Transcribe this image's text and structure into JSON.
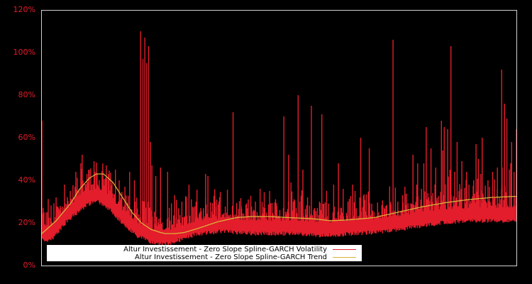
{
  "chart_data": {
    "type": "line",
    "title": "",
    "xlabel": "",
    "ylabel": "",
    "ylim": [
      0,
      120
    ],
    "y_ticks": [
      "0%",
      "20%",
      "40%",
      "60%",
      "80%",
      "100%",
      "120%"
    ],
    "y_tick_values": [
      0,
      20,
      40,
      60,
      80,
      100,
      120
    ],
    "grid": false,
    "legend_position": "lower left",
    "x_range_normalized": [
      0,
      1
    ],
    "series": [
      {
        "name": "Altur Investissement - Zero Slope Spline-GARCH Volatility",
        "color": "#e31d2b",
        "baseline": [
          [
            0.0,
            14
          ],
          [
            0.02,
            14
          ],
          [
            0.05,
            22
          ],
          [
            0.08,
            28
          ],
          [
            0.1,
            31
          ],
          [
            0.12,
            32
          ],
          [
            0.14,
            29
          ],
          [
            0.17,
            22
          ],
          [
            0.2,
            16
          ],
          [
            0.23,
            13
          ],
          [
            0.26,
            12
          ],
          [
            0.29,
            14
          ],
          [
            0.33,
            17
          ],
          [
            0.38,
            18
          ],
          [
            0.45,
            17
          ],
          [
            0.52,
            17
          ],
          [
            0.6,
            16
          ],
          [
            0.66,
            17
          ],
          [
            0.72,
            18
          ],
          [
            0.78,
            20
          ],
          [
            0.84,
            22
          ],
          [
            0.9,
            23
          ],
          [
            0.95,
            23
          ],
          [
            1.0,
            23
          ]
        ],
        "spikes": [
          [
            0.0,
            68
          ],
          [
            0.03,
            32
          ],
          [
            0.04,
            27
          ],
          [
            0.06,
            35
          ],
          [
            0.07,
            37
          ],
          [
            0.085,
            52
          ],
          [
            0.095,
            43
          ],
          [
            0.105,
            38
          ],
          [
            0.11,
            49
          ],
          [
            0.12,
            37
          ],
          [
            0.13,
            38
          ],
          [
            0.14,
            40
          ],
          [
            0.155,
            45
          ],
          [
            0.163,
            40
          ],
          [
            0.175,
            37
          ],
          [
            0.185,
            44
          ],
          [
            0.195,
            40
          ],
          [
            0.208,
            110
          ],
          [
            0.213,
            97
          ],
          [
            0.217,
            107
          ],
          [
            0.221,
            95
          ],
          [
            0.225,
            103
          ],
          [
            0.229,
            58
          ],
          [
            0.232,
            47
          ],
          [
            0.24,
            42
          ],
          [
            0.25,
            46
          ],
          [
            0.265,
            44
          ],
          [
            0.28,
            33
          ],
          [
            0.295,
            30
          ],
          [
            0.31,
            38
          ],
          [
            0.325,
            30
          ],
          [
            0.335,
            27
          ],
          [
            0.345,
            43
          ],
          [
            0.35,
            42
          ],
          [
            0.365,
            30
          ],
          [
            0.38,
            24
          ],
          [
            0.403,
            72
          ],
          [
            0.42,
            28
          ],
          [
            0.435,
            31
          ],
          [
            0.45,
            30
          ],
          [
            0.46,
            36
          ],
          [
            0.47,
            27
          ],
          [
            0.48,
            35
          ],
          [
            0.495,
            28
          ],
          [
            0.51,
            70
          ],
          [
            0.52,
            52
          ],
          [
            0.525,
            39
          ],
          [
            0.54,
            80
          ],
          [
            0.55,
            45
          ],
          [
            0.56,
            32
          ],
          [
            0.575,
            27
          ],
          [
            0.585,
            30
          ],
          [
            0.6,
            35
          ],
          [
            0.615,
            38
          ],
          [
            0.625,
            34
          ],
          [
            0.635,
            36
          ],
          [
            0.645,
            30
          ],
          [
            0.66,
            35
          ],
          [
            0.67,
            32
          ],
          [
            0.68,
            30
          ],
          [
            0.695,
            29
          ],
          [
            0.71,
            25
          ],
          [
            0.725,
            28
          ],
          [
            0.74,
            44
          ],
          [
            0.75,
            30
          ],
          [
            0.765,
            37
          ],
          [
            0.78,
            26
          ],
          [
            0.79,
            38
          ],
          [
            0.8,
            36
          ],
          [
            0.815,
            32
          ],
          [
            0.83,
            46
          ],
          [
            0.845,
            54
          ],
          [
            0.86,
            45
          ],
          [
            0.87,
            44
          ],
          [
            0.885,
            31
          ],
          [
            0.9,
            38
          ],
          [
            0.915,
            57
          ],
          [
            0.925,
            43
          ],
          [
            0.94,
            40
          ],
          [
            0.95,
            31
          ],
          [
            0.96,
            38
          ],
          [
            0.97,
            46
          ],
          [
            0.98,
            43
          ],
          [
            0.99,
            36
          ],
          [
            1.0,
            28
          ],
          [
            0.568,
            75
          ],
          [
            0.59,
            71
          ],
          [
            0.625,
            48
          ],
          [
            0.655,
            38
          ],
          [
            0.672,
            60
          ],
          [
            0.69,
            55
          ],
          [
            0.74,
            106
          ],
          [
            0.76,
            33
          ],
          [
            0.782,
            52
          ],
          [
            0.792,
            48
          ],
          [
            0.805,
            48
          ],
          [
            0.81,
            65
          ],
          [
            0.82,
            55
          ],
          [
            0.83,
            45
          ],
          [
            0.842,
            68
          ],
          [
            0.848,
            65
          ],
          [
            0.855,
            64
          ],
          [
            0.862,
            103
          ],
          [
            0.875,
            58
          ],
          [
            0.885,
            49
          ],
          [
            0.895,
            44
          ],
          [
            0.91,
            40
          ],
          [
            0.92,
            50
          ],
          [
            0.928,
            60
          ],
          [
            0.95,
            44
          ],
          [
            0.96,
            46
          ],
          [
            0.975,
            76
          ],
          [
            0.98,
            69
          ],
          [
            0.99,
            58
          ],
          [
            1.0,
            64
          ],
          [
            1.0,
            44
          ],
          [
            0.969,
            92
          ],
          [
            0.985,
            45
          ],
          [
            0.995,
            44
          ],
          [
            0.988,
            48
          ]
        ]
      },
      {
        "name": "Altur Investissement - Zero Slope Spline-GARCH Trend",
        "color": "#d9b23a",
        "points": [
          [
            0.0,
            15
          ],
          [
            0.03,
            21
          ],
          [
            0.06,
            29
          ],
          [
            0.08,
            36
          ],
          [
            0.1,
            41
          ],
          [
            0.115,
            43
          ],
          [
            0.13,
            43
          ],
          [
            0.15,
            39
          ],
          [
            0.17,
            32
          ],
          [
            0.19,
            25
          ],
          [
            0.21,
            20
          ],
          [
            0.23,
            17
          ],
          [
            0.25,
            15.5
          ],
          [
            0.26,
            15
          ],
          [
            0.28,
            15
          ],
          [
            0.3,
            15.5
          ],
          [
            0.33,
            17.5
          ],
          [
            0.37,
            20.5
          ],
          [
            0.41,
            22.5
          ],
          [
            0.44,
            23
          ],
          [
            0.48,
            23
          ],
          [
            0.52,
            22.5
          ],
          [
            0.57,
            22
          ],
          [
            0.61,
            21
          ],
          [
            0.65,
            21.5
          ],
          [
            0.7,
            22.5
          ],
          [
            0.75,
            25
          ],
          [
            0.8,
            27.5
          ],
          [
            0.85,
            29.5
          ],
          [
            0.9,
            31
          ],
          [
            0.95,
            32
          ],
          [
            1.0,
            32.5
          ]
        ]
      }
    ]
  },
  "legend": {
    "items": [
      {
        "label": "Altur Investissement - Zero Slope Spline-GARCH Volatility",
        "color": "#e31d2b"
      },
      {
        "label": "Altur Investissement - Zero Slope Spline-GARCH Trend",
        "color": "#d9b23a"
      }
    ]
  },
  "axis": {
    "tick_color": "#e31d2b",
    "frame_color": "#d0d0d0"
  }
}
